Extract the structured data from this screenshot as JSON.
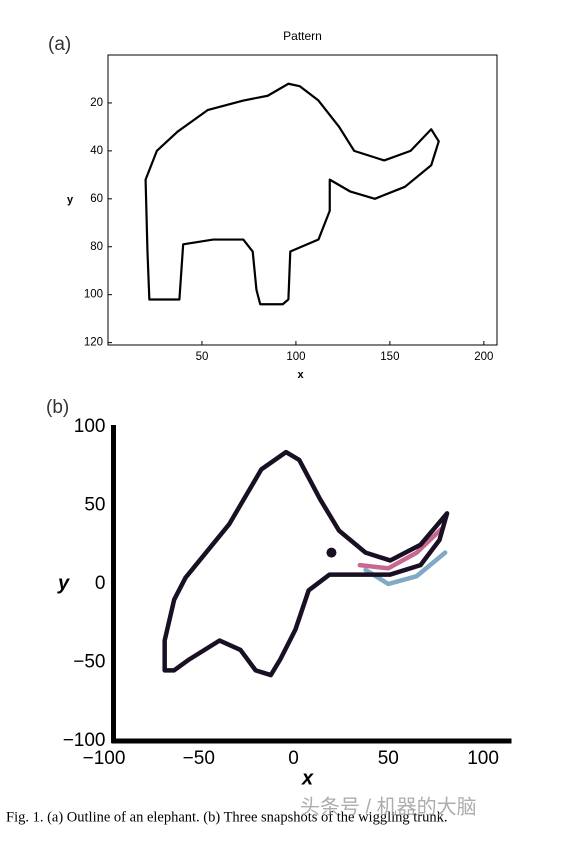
{
  "chart_data": [
    {
      "type": "line",
      "panel_label": "(a)",
      "title": "Pattern",
      "x_label": "x",
      "y_label": "y",
      "frame": "box",
      "xlim": [
        0,
        207
      ],
      "ylim": [
        121,
        0
      ],
      "xticks": [
        50,
        100,
        150,
        200
      ],
      "yticks": [
        20,
        40,
        60,
        80,
        100,
        120
      ],
      "series": [
        {
          "color": "#000000",
          "x": [
            22,
            21,
            20,
            26,
            37,
            53,
            72,
            85,
            96,
            102,
            112,
            123,
            131,
            147,
            161,
            172,
            176,
            172,
            158,
            142,
            129,
            118,
            118,
            112,
            97,
            96,
            93,
            81,
            79,
            77,
            72,
            56,
            40,
            38,
            22
          ],
          "y": [
            102,
            82,
            52,
            40,
            32,
            23,
            19,
            17,
            12,
            13,
            19,
            30,
            40,
            44,
            40,
            31,
            36,
            46,
            55,
            60,
            57,
            52,
            65,
            77,
            82,
            102,
            104,
            104,
            98,
            82,
            77,
            77,
            79,
            102,
            102
          ]
        }
      ]
    },
    {
      "type": "line",
      "panel_label": "(b)",
      "x_label": "x",
      "y_label": "y",
      "frame": "axes",
      "xlim": [
        -95,
        115
      ],
      "ylim": [
        -100,
        100
      ],
      "xticks": [
        {
          "value": -100,
          "label": "−100"
        },
        {
          "value": -50,
          "label": "−50"
        },
        0,
        50,
        100
      ],
      "yticks": [
        {
          "value": -100,
          "label": "−100"
        },
        {
          "value": -50,
          "label": "−50"
        },
        0,
        50,
        100
      ],
      "series": [
        {
          "color": "#7fa9c4",
          "x": [
            38,
            50,
            65,
            80
          ],
          "y": [
            9,
            0,
            5,
            20
          ]
        },
        {
          "color": "#c9688f",
          "x": [
            35,
            50,
            65,
            78
          ],
          "y": [
            12,
            10,
            20,
            35
          ]
        },
        {
          "color": "#1a1024",
          "x": [
            -57,
            -34,
            -17,
            -4,
            3,
            14,
            24,
            38,
            51,
            67,
            81,
            77,
            67,
            51,
            35,
            19,
            8,
            1,
            -7,
            -12,
            -20,
            -28,
            -39,
            -55,
            -63,
            -68,
            -68,
            -63,
            -57
          ],
          "y": [
            4,
            38,
            73,
            84,
            79,
            54,
            34,
            20,
            15,
            25,
            45,
            28,
            12,
            6,
            6,
            6,
            -4,
            -29,
            -48,
            -58,
            -55,
            -42,
            -36,
            -48,
            -55,
            -55,
            -36,
            -10,
            4
          ]
        }
      ],
      "points": {
        "color": "#1a1024",
        "x": [
          20
        ],
        "y": [
          20
        ]
      }
    }
  ],
  "caption": "Fig. 1. (a) Outline of an elephant. (b) Three snapshots of the wiggling trunk.",
  "watermark": "头条号 / 机器的大脑"
}
